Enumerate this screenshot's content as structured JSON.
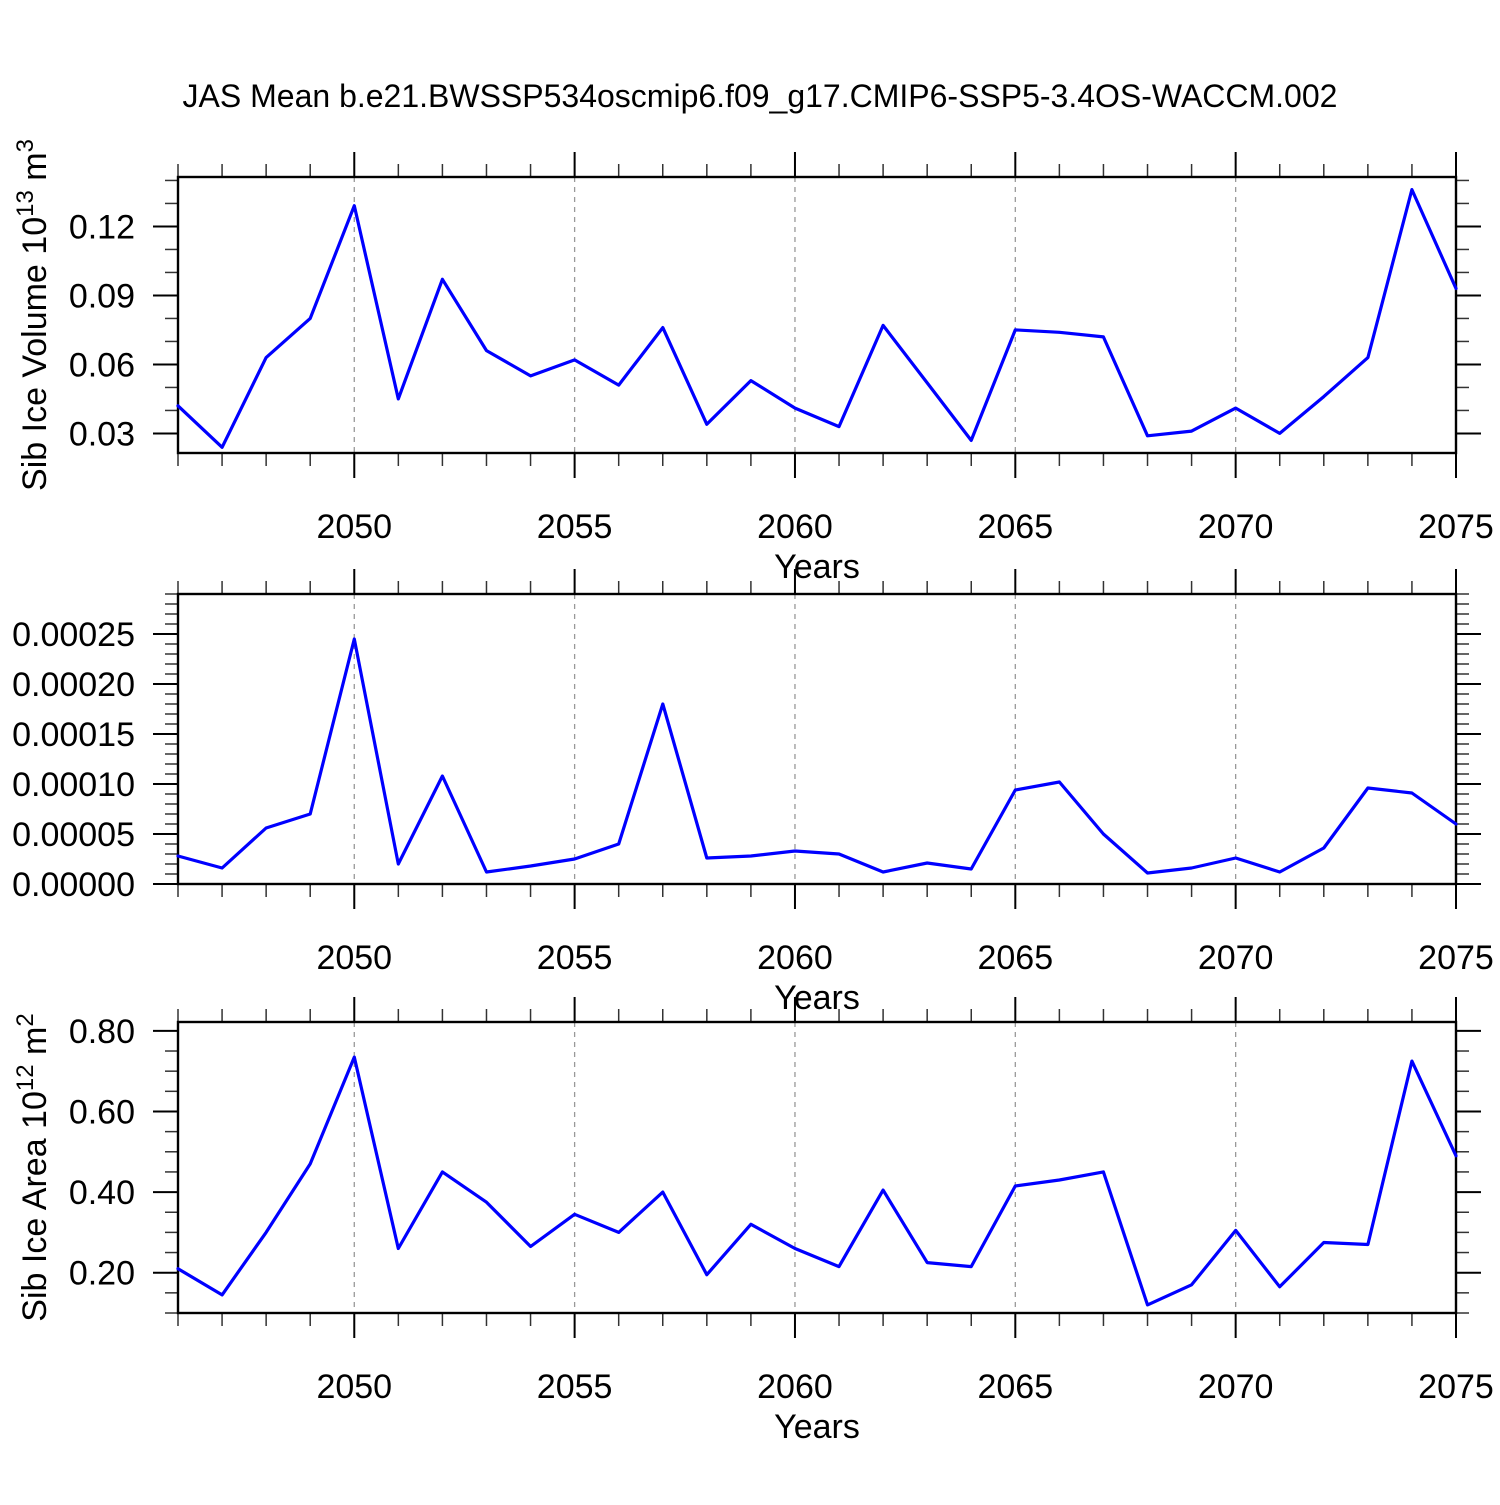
{
  "title": "JAS Mean b.e21.BWSSP534oscmip6.f09_g17.CMIP6-SSP5-3.4OS-WACCM.002",
  "style": {
    "line_color": "#0000ff",
    "grid_color": "#999999",
    "axis_color": "#000000",
    "minor_tick_color": "#333333"
  },
  "chart_data": [
    {
      "type": "line",
      "panel": "sib-ice-volume",
      "ylabel_parts": [
        [
          "Sib Ice Volume 10",
          "n"
        ],
        [
          "13",
          "sup"
        ],
        [
          " m",
          "n"
        ],
        [
          "3",
          "sup"
        ]
      ],
      "xlabel": "Years",
      "x": [
        2046,
        2047,
        2048,
        2049,
        2050,
        2051,
        2052,
        2053,
        2054,
        2055,
        2056,
        2057,
        2058,
        2059,
        2060,
        2061,
        2062,
        2063,
        2064,
        2065,
        2066,
        2067,
        2068,
        2069,
        2070,
        2071,
        2072,
        2073,
        2074,
        2075
      ],
      "values": [
        0.042,
        0.024,
        0.063,
        0.08,
        0.129,
        0.045,
        0.097,
        0.066,
        0.055,
        0.062,
        0.051,
        0.076,
        0.034,
        0.053,
        0.041,
        0.033,
        0.077,
        0.052,
        0.027,
        0.075,
        0.074,
        0.072,
        0.029,
        0.031,
        0.041,
        0.03,
        0.046,
        0.063,
        0.136,
        0.093
      ],
      "xlim": [
        2046,
        2075
      ],
      "ylim": [
        0.0215,
        0.1415
      ],
      "xticks": [
        2050,
        2055,
        2060,
        2065,
        2070,
        2075
      ],
      "xtick_labels": [
        "2050",
        "2055",
        "2060",
        "2065",
        "2070",
        "2075"
      ],
      "xminor_step": 1,
      "yticks": [
        0.03,
        0.06,
        0.09,
        0.12
      ],
      "ytick_labels": [
        "0.03",
        "0.06",
        "0.09",
        "0.12"
      ],
      "yminor_step": 0.01,
      "grid_x": [
        2050,
        2055,
        2060,
        2065,
        2070,
        2075
      ],
      "grid": "vertical-dashed",
      "legend": "none"
    },
    {
      "type": "line",
      "panel": "sib-ice-middle",
      "ylabel_parts": [],
      "xlabel": "Years",
      "x": [
        2046,
        2047,
        2048,
        2049,
        2050,
        2051,
        2052,
        2053,
        2054,
        2055,
        2056,
        2057,
        2058,
        2059,
        2060,
        2061,
        2062,
        2063,
        2064,
        2065,
        2066,
        2067,
        2068,
        2069,
        2070,
        2071,
        2072,
        2073,
        2074,
        2075
      ],
      "values": [
        2.8e-05,
        1.6e-05,
        5.6e-05,
        7e-05,
        0.000245,
        2e-05,
        0.000108,
        1.2e-05,
        1.8e-05,
        2.5e-05,
        4e-05,
        0.00018,
        2.6e-05,
        2.8e-05,
        3.3e-05,
        3e-05,
        1.2e-05,
        2.1e-05,
        1.5e-05,
        9.4e-05,
        0.000102,
        5e-05,
        1.1e-05,
        1.6e-05,
        2.6e-05,
        1.2e-05,
        3.6e-05,
        9.6e-05,
        9.1e-05,
        6e-05
      ],
      "xlim": [
        2046,
        2075
      ],
      "ylim": [
        0,
        0.00029
      ],
      "xticks": [
        2050,
        2055,
        2060,
        2065,
        2070,
        2075
      ],
      "xtick_labels": [
        "2050",
        "2055",
        "2060",
        "2065",
        "2070",
        "2075"
      ],
      "xminor_step": 1,
      "yticks": [
        0,
        5e-05,
        0.0001,
        0.00015,
        0.0002,
        0.00025
      ],
      "ytick_labels": [
        "0.00000",
        "0.00005",
        "0.00010",
        "0.00015",
        "0.00020",
        "0.00025"
      ],
      "yminor_step": 1e-05,
      "grid_x": [
        2050,
        2055,
        2060,
        2065,
        2070,
        2075
      ],
      "grid": "vertical-dashed",
      "legend": "none"
    },
    {
      "type": "line",
      "panel": "sib-ice-area",
      "ylabel_parts": [
        [
          "Sib Ice Area 10",
          "n"
        ],
        [
          "12",
          "sup"
        ],
        [
          " m",
          "n"
        ],
        [
          "2",
          "sup"
        ]
      ],
      "xlabel": "Years",
      "x": [
        2046,
        2047,
        2048,
        2049,
        2050,
        2051,
        2052,
        2053,
        2054,
        2055,
        2056,
        2057,
        2058,
        2059,
        2060,
        2061,
        2062,
        2063,
        2064,
        2065,
        2066,
        2067,
        2068,
        2069,
        2070,
        2071,
        2072,
        2073,
        2074,
        2075
      ],
      "values": [
        0.21,
        0.145,
        0.3,
        0.47,
        0.735,
        0.26,
        0.45,
        0.375,
        0.265,
        0.345,
        0.3,
        0.4,
        0.195,
        0.32,
        0.26,
        0.215,
        0.405,
        0.225,
        0.215,
        0.415,
        0.43,
        0.45,
        0.12,
        0.17,
        0.305,
        0.165,
        0.275,
        0.27,
        0.725,
        0.49
      ],
      "xlim": [
        2046,
        2075
      ],
      "ylim": [
        0.1,
        0.822
      ],
      "xticks": [
        2050,
        2055,
        2060,
        2065,
        2070,
        2075
      ],
      "xtick_labels": [
        "2050",
        "2055",
        "2060",
        "2065",
        "2070",
        "2075"
      ],
      "xminor_step": 1,
      "yticks": [
        0.2,
        0.4,
        0.6,
        0.8
      ],
      "ytick_labels": [
        "0.20",
        "0.40",
        "0.60",
        "0.80"
      ],
      "yminor_step": 0.05,
      "grid_x": [
        2050,
        2055,
        2060,
        2065,
        2070,
        2075
      ],
      "grid": "vertical-dashed",
      "legend": "none"
    }
  ]
}
